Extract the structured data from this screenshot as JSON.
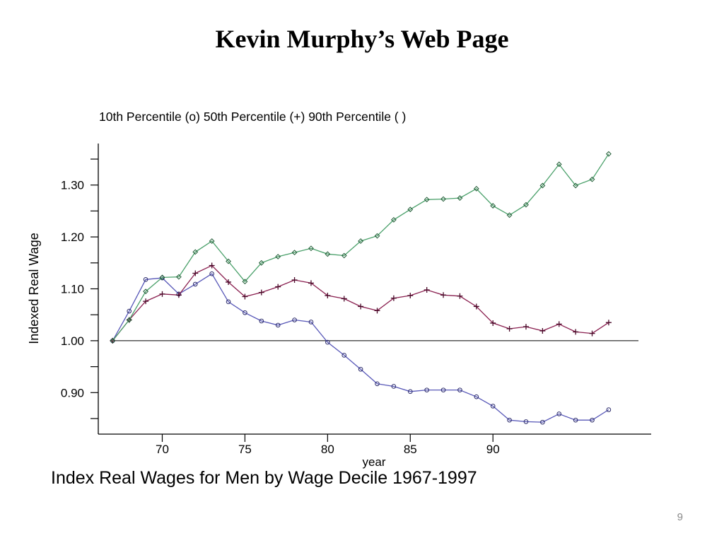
{
  "slide": {
    "title": "Kevin Murphy’s Web Page",
    "page_number": "9"
  },
  "chart_data": {
    "type": "line",
    "legend_text": "10th Percentile (o)  50th Percentile (+) 90th Percentile ( )",
    "caption": "Index Real Wages for Men by Wage Decile 1967-1997",
    "xlabel": "year",
    "ylabel": "Indexed Real Wage",
    "x": [
      67,
      68,
      69,
      70,
      71,
      72,
      73,
      74,
      75,
      76,
      77,
      78,
      79,
      80,
      81,
      82,
      83,
      84,
      85,
      86,
      87,
      88,
      89,
      90,
      91,
      92,
      93,
      94,
      95,
      96,
      97
    ],
    "xlim": [
      66.9,
      98.8
    ],
    "ylim": [
      0.82,
      1.38
    ],
    "x_ticks": [
      70,
      75,
      80,
      85,
      90
    ],
    "x_tick_labels": [
      "70",
      "75",
      "80",
      "85",
      "90"
    ],
    "y_ticks": [
      0.9,
      1.0,
      1.1,
      1.2,
      1.3
    ],
    "y_tick_labels": [
      "0.90",
      "1.00",
      "1.10",
      "1.20",
      "1.30"
    ],
    "y_minor_ticks": [
      0.85,
      0.95,
      1.05,
      1.15,
      1.25,
      1.35
    ],
    "reference_line": 1.0,
    "grid": false,
    "series": [
      {
        "name": "10th Percentile",
        "marker": "circle",
        "color": "#5858b8",
        "values": [
          1.0,
          1.057,
          1.118,
          1.121,
          1.09,
          1.109,
          1.129,
          1.075,
          1.054,
          1.038,
          1.03,
          1.04,
          1.036,
          0.997,
          0.972,
          0.945,
          0.917,
          0.912,
          0.902,
          0.905,
          0.905,
          0.905,
          0.892,
          0.874,
          0.847,
          0.844,
          0.843,
          0.859,
          0.847,
          0.847,
          0.867
        ]
      },
      {
        "name": "50th Percentile",
        "marker": "plus",
        "color": "#8a2050",
        "values": [
          1.0,
          1.04,
          1.076,
          1.09,
          1.088,
          1.13,
          1.145,
          1.113,
          1.085,
          1.093,
          1.104,
          1.117,
          1.111,
          1.087,
          1.081,
          1.066,
          1.058,
          1.082,
          1.087,
          1.098,
          1.088,
          1.086,
          1.066,
          1.034,
          1.023,
          1.027,
          1.019,
          1.032,
          1.017,
          1.014,
          1.035
        ]
      },
      {
        "name": "90th Percentile",
        "marker": "diamond",
        "color": "#4aa06a",
        "values": [
          1.0,
          1.04,
          1.095,
          1.122,
          1.123,
          1.171,
          1.192,
          1.153,
          1.114,
          1.15,
          1.162,
          1.17,
          1.178,
          1.167,
          1.164,
          1.192,
          1.202,
          1.233,
          1.253,
          1.272,
          1.273,
          1.275,
          1.293,
          1.26,
          1.242,
          1.262,
          1.299,
          1.34,
          1.299,
          1.311,
          1.36
        ]
      }
    ]
  }
}
